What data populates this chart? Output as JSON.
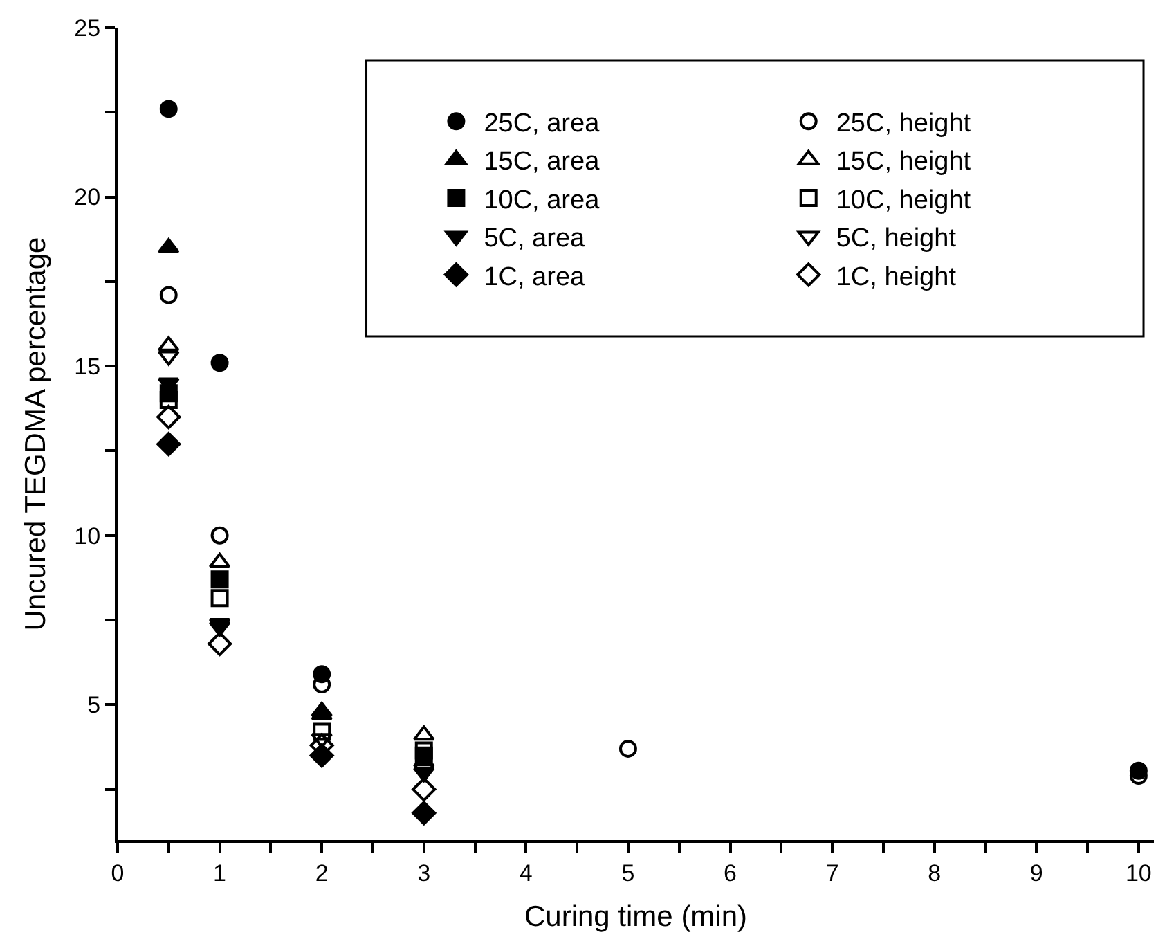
{
  "chart_data": {
    "type": "scatter",
    "xlabel": "Curing time (min)",
    "ylabel": "Uncured TEGDMA percentage",
    "xlim": [
      0,
      10.15
    ],
    "ylim": [
      1,
      25
    ],
    "xticks": [
      0,
      {
        "value": 0.5,
        "label": null
      },
      1,
      {
        "value": 1.5,
        "label": null
      },
      2,
      {
        "value": 2.5,
        "label": null
      },
      3,
      {
        "value": 3.5,
        "label": null
      },
      4,
      {
        "value": 4.5,
        "label": null
      },
      5,
      {
        "value": 5.5,
        "label": null
      },
      6,
      {
        "value": 6.5,
        "label": null
      },
      7,
      {
        "value": 7.5,
        "label": null
      },
      8,
      {
        "value": 8.5,
        "label": null
      },
      9,
      {
        "value": 9.5,
        "label": null
      },
      10
    ],
    "yticks": [
      {
        "value": 2.5,
        "label": null
      },
      5,
      {
        "value": 7.5,
        "label": null
      },
      10,
      {
        "value": 12.5,
        "label": null
      },
      15,
      {
        "value": 17.5,
        "label": null
      },
      20,
      {
        "value": 22.5,
        "label": null
      },
      25
    ],
    "legend": "top right",
    "series": [
      {
        "name": "25C, area",
        "color": "#000000",
        "marker": "circle",
        "x": [
          0.5,
          1,
          2,
          10
        ],
        "values": [
          22.6,
          15.1,
          5.9,
          3.05
        ]
      },
      {
        "name": "25C, height",
        "color": "#000000",
        "marker": "circle",
        "x": [
          0.5,
          1,
          2,
          5,
          10
        ],
        "values": [
          17.1,
          10.0,
          5.6,
          3.7,
          2.9
        ]
      },
      {
        "name": "15C, area",
        "color": "#000000",
        "marker": "triangle",
        "x": [
          0.5,
          1,
          2
        ],
        "values": [
          18.5,
          null,
          4.7
        ]
      },
      {
        "name": "15C, height",
        "color": "#000000",
        "marker": "triangle",
        "x": [
          0.5,
          1,
          2,
          3
        ],
        "values": [
          15.6,
          9.2,
          4.8,
          4.1
        ]
      },
      {
        "name": "10C, area",
        "color": "#000000",
        "marker": "square",
        "x": [
          0.5,
          1,
          2,
          3
        ],
        "values": [
          14.2,
          8.7,
          null,
          3.5
        ]
      },
      {
        "name": "10C, height",
        "color": "#000000",
        "marker": "square",
        "x": [
          0.5,
          1,
          2,
          3
        ],
        "values": [
          14.0,
          8.15,
          4.2,
          3.65
        ]
      },
      {
        "name": "5C, area",
        "color": "#000000",
        "marker": "triangle",
        "x": [
          0.5,
          1,
          2,
          3
        ],
        "values": [
          14.5,
          7.4,
          null,
          3.0
        ]
      },
      {
        "name": "5C, height",
        "color": "#000000",
        "marker": "triangle",
        "x": [
          0.5,
          1,
          2,
          3
        ],
        "values": [
          15.3,
          7.3,
          4.0,
          3.1
        ]
      },
      {
        "name": "1C, area",
        "color": "#000000",
        "marker": "diamond",
        "x": [
          0.5,
          1,
          2,
          3
        ],
        "values": [
          12.7,
          null,
          3.5,
          1.8
        ]
      },
      {
        "name": "1C, height",
        "color": "#000000",
        "marker": "diamond",
        "x": [
          0.5,
          1,
          2,
          3
        ],
        "values": [
          13.5,
          6.8,
          3.8,
          2.5
        ]
      }
    ]
  }
}
